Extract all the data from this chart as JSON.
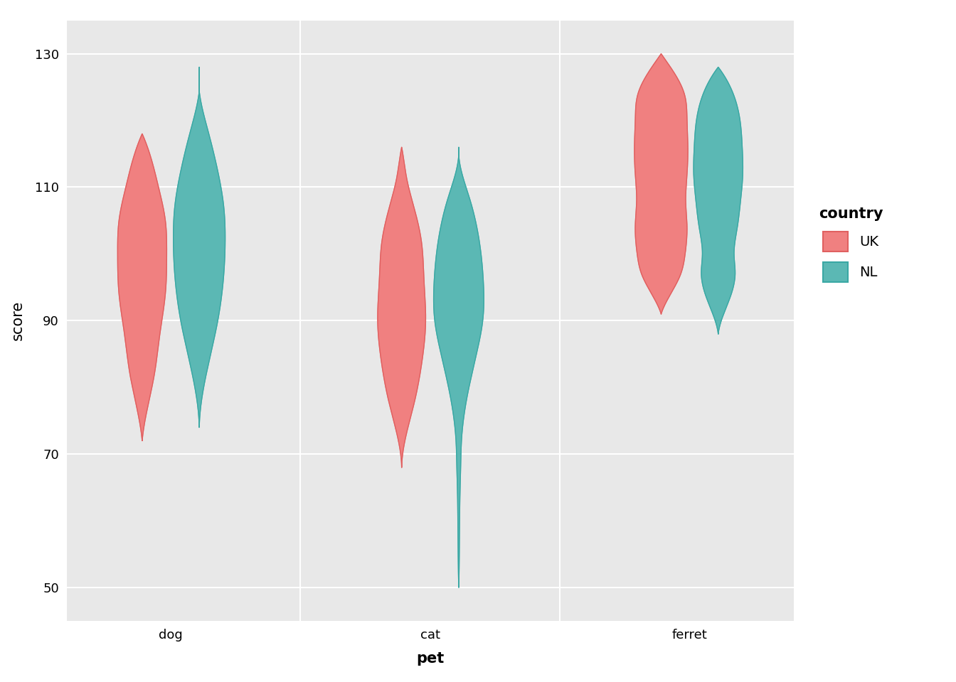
{
  "colors": {
    "UK": "#F08080",
    "NL": "#5BB8B4"
  },
  "edge_colors": {
    "UK": "#E06060",
    "NL": "#3AA8A4"
  },
  "background_color": "#E8E8E8",
  "panel_background": "#E8E8E8",
  "white_background": "#FFFFFF",
  "grid_color": "white",
  "ylabel": "score",
  "xlabel": "pet",
  "legend_title": "country",
  "ylim": [
    45,
    135
  ],
  "yticks": [
    50,
    70,
    90,
    110,
    130
  ],
  "axis_label_fontsize": 15,
  "tick_fontsize": 13,
  "legend_fontsize": 14,
  "legend_title_fontsize": 15,
  "violin_width": 0.42,
  "xtick_positions": [
    1.0,
    3.0,
    5.0
  ],
  "xtick_labels": [
    "dog",
    "cat",
    "ferret"
  ],
  "x_positions": {
    "dog_UK": 0.78,
    "dog_NL": 1.22,
    "cat_UK": 2.78,
    "cat_NL": 3.22,
    "ferret_UK": 4.78,
    "ferret_NL": 5.22
  }
}
